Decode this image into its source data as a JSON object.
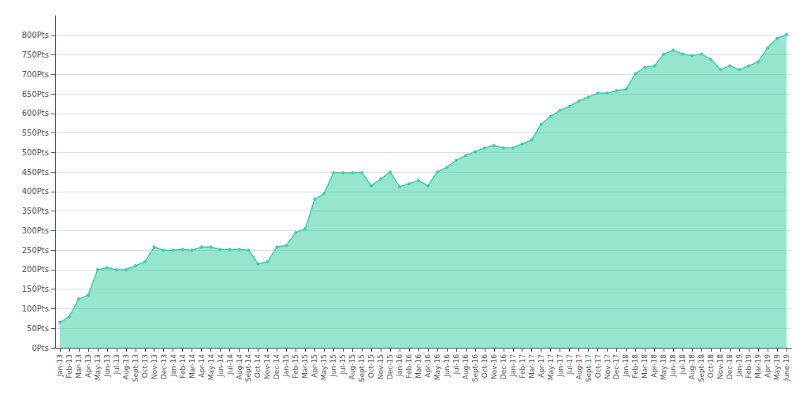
{
  "chart_data": {
    "type": "area",
    "categories": [
      "Jan-13",
      "Feb-13",
      "Mar-13",
      "Apr-13",
      "May-13",
      "Jun-13",
      "Jul-13",
      "Aug-13",
      "Sept-13",
      "Oct-13",
      "Nov-13",
      "Dec-13",
      "Jan-14",
      "Feb-14",
      "Mar-14",
      "Apr-14",
      "May-14",
      "Jun-14",
      "Jul-14",
      "Aug-14",
      "Sept-14",
      "Oct-14",
      "Nov-14",
      "Dec-14",
      "Jan-15",
      "Feb-15",
      "Mar-15",
      "Apr-15",
      "May-15",
      "Jun-15",
      "Jul-15",
      "Aug-15",
      "Sept-15",
      "Oct-15",
      "Nov-15",
      "Dec-15",
      "Jan-16",
      "Feb-16",
      "Mar-16",
      "Apr-16",
      "May-16",
      "Jun-16",
      "Jul-16",
      "Aug-16",
      "Sept-16",
      "Oct-16",
      "Nov-16",
      "Dec-16",
      "Jan-17",
      "Feb-17",
      "Mar-17",
      "Apr-17",
      "May-17",
      "Jun-17",
      "Jul-17",
      "Aug-17",
      "Sept-17",
      "Oct-17",
      "Nov-17",
      "Dec-17",
      "Jan-18",
      "Feb-18",
      "Mar-18",
      "Apr-18",
      "May-18",
      "Jun-18",
      "Jul-18",
      "Aug-18",
      "Sept-18",
      "Oct-18",
      "Nov-18",
      "Dec-18",
      "Jan-19",
      "Feb-19",
      "Mar-19",
      "Apr-19",
      "May-19",
      "June-19"
    ],
    "values": [
      65,
      80,
      125,
      135,
      200,
      205,
      200,
      200,
      210,
      220,
      258,
      250,
      250,
      252,
      250,
      258,
      258,
      252,
      252,
      252,
      250,
      215,
      220,
      258,
      262,
      295,
      305,
      380,
      395,
      448,
      448,
      448,
      448,
      415,
      432,
      450,
      412,
      420,
      428,
      415,
      450,
      462,
      480,
      492,
      502,
      512,
      518,
      512,
      512,
      522,
      532,
      572,
      592,
      608,
      618,
      632,
      642,
      652,
      652,
      658,
      662,
      702,
      718,
      722,
      752,
      762,
      752,
      748,
      752,
      738,
      712,
      722,
      712,
      722,
      732,
      768,
      792,
      802
    ],
    "color": "#3ecfa8",
    "ylim": [
      0,
      850
    ],
    "yticks": [
      {
        "value": 0,
        "label": "0Pts"
      },
      {
        "value": 50,
        "label": "50Pts"
      },
      {
        "value": 100,
        "label": "100Pts"
      },
      {
        "value": 150,
        "label": "150Pts"
      },
      {
        "value": 200,
        "label": "200Pts"
      },
      {
        "value": 250,
        "label": "250Pts"
      },
      {
        "value": 300,
        "label": "300Pts"
      },
      {
        "value": 350,
        "label": "350Pts"
      },
      {
        "value": 400,
        "label": "400Pts"
      },
      {
        "value": 450,
        "label": "450Pts"
      },
      {
        "value": 500,
        "label": "500Pts"
      },
      {
        "value": 550,
        "label": "550Pts"
      },
      {
        "value": 600,
        "label": "600Pts"
      },
      {
        "value": 650,
        "label": "650Pts"
      },
      {
        "value": 700,
        "label": "700Pts"
      },
      {
        "value": 750,
        "label": "750Pts"
      },
      {
        "value": 800,
        "label": "800Pts"
      }
    ],
    "grid": true
  }
}
